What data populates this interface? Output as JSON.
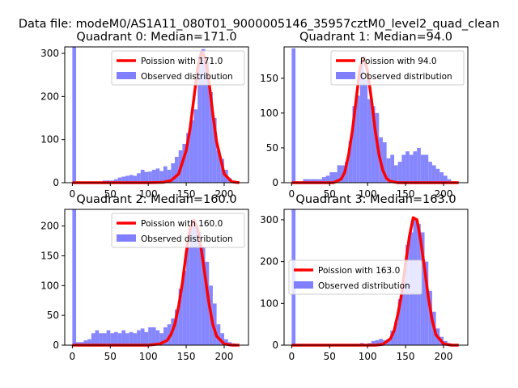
{
  "figure": {
    "suptitle": "Data file: modeM0/AS1A11_080T01_9000005146_35957cztM0_level2_quad_clean",
    "colors": {
      "hist": "#7f7fff",
      "fit": "#ff0000",
      "axis": "#000000"
    }
  },
  "chart_data": [
    {
      "type": "bar",
      "title": "Quadrant 0: Median=171.0",
      "xlim": [
        -10,
        232
      ],
      "ylim": [
        0,
        315
      ],
      "xticks": [
        0,
        50,
        100,
        150,
        200
      ],
      "yticks": [
        0,
        100,
        200,
        300
      ],
      "bin_width": 5,
      "bins": [
        [
          0,
          315
        ],
        [
          5,
          2
        ],
        [
          10,
          2
        ],
        [
          15,
          2
        ],
        [
          20,
          2
        ],
        [
          25,
          2
        ],
        [
          30,
          2
        ],
        [
          35,
          2
        ],
        [
          40,
          5
        ],
        [
          45,
          5
        ],
        [
          50,
          5
        ],
        [
          55,
          8
        ],
        [
          60,
          12
        ],
        [
          65,
          14
        ],
        [
          70,
          16
        ],
        [
          75,
          18
        ],
        [
          80,
          16
        ],
        [
          85,
          22
        ],
        [
          90,
          30
        ],
        [
          95,
          25
        ],
        [
          100,
          26
        ],
        [
          105,
          30
        ],
        [
          110,
          33
        ],
        [
          115,
          27
        ],
        [
          120,
          38
        ],
        [
          125,
          30
        ],
        [
          130,
          45
        ],
        [
          135,
          60
        ],
        [
          140,
          75
        ],
        [
          145,
          90
        ],
        [
          150,
          115
        ],
        [
          155,
          145
        ],
        [
          160,
          170
        ],
        [
          165,
          295
        ],
        [
          170,
          310
        ],
        [
          175,
          280
        ],
        [
          180,
          210
        ],
        [
          185,
          150
        ],
        [
          190,
          75
        ],
        [
          195,
          55
        ],
        [
          200,
          30
        ],
        [
          205,
          10
        ],
        [
          210,
          5
        ]
      ],
      "legend": {
        "fit_label": "Poission with 171.0",
        "hist_label": "Observed distribution",
        "loc": "upper right"
      },
      "fit": {
        "x": [
          0,
          100,
          120,
          130,
          140,
          150,
          155,
          160,
          165,
          170,
          175,
          180,
          185,
          190,
          200,
          210,
          220
        ],
        "y": [
          0,
          0,
          1,
          5,
          20,
          75,
          125,
          195,
          265,
          303,
          290,
          235,
          160,
          95,
          20,
          2,
          0
        ]
      }
    },
    {
      "type": "bar",
      "title": "Quadrant 1: Median=94.0",
      "xlim": [
        -10,
        232
      ],
      "ylim": [
        0,
        195
      ],
      "xticks": [
        0,
        50,
        100,
        150,
        200
      ],
      "yticks": [
        0,
        50,
        100,
        150
      ],
      "bin_width": 5,
      "bins": [
        [
          0,
          193
        ],
        [
          5,
          2
        ],
        [
          10,
          2
        ],
        [
          15,
          5
        ],
        [
          20,
          5
        ],
        [
          25,
          5
        ],
        [
          30,
          5
        ],
        [
          35,
          5
        ],
        [
          40,
          8
        ],
        [
          45,
          10
        ],
        [
          50,
          15
        ],
        [
          55,
          15
        ],
        [
          60,
          25
        ],
        [
          65,
          25
        ],
        [
          70,
          30
        ],
        [
          75,
          60
        ],
        [
          80,
          110
        ],
        [
          85,
          125
        ],
        [
          90,
          175
        ],
        [
          95,
          148
        ],
        [
          100,
          120
        ],
        [
          105,
          110
        ],
        [
          110,
          100
        ],
        [
          115,
          65
        ],
        [
          120,
          58
        ],
        [
          125,
          35
        ],
        [
          130,
          40
        ],
        [
          135,
          25
        ],
        [
          140,
          30
        ],
        [
          145,
          40
        ],
        [
          150,
          45
        ],
        [
          155,
          40
        ],
        [
          160,
          45
        ],
        [
          165,
          50
        ],
        [
          170,
          40
        ],
        [
          175,
          40
        ],
        [
          180,
          30
        ],
        [
          185,
          25
        ],
        [
          190,
          20
        ],
        [
          195,
          15
        ],
        [
          200,
          10
        ],
        [
          205,
          5
        ],
        [
          210,
          2
        ]
      ],
      "legend": {
        "fit_label": "Poission with 94.0",
        "hist_label": "Observed distribution",
        "loc": "upper right"
      },
      "fit": {
        "x": [
          0,
          55,
          65,
          70,
          75,
          80,
          85,
          90,
          95,
          100,
          105,
          110,
          115,
          120,
          125,
          130,
          140,
          150,
          220
        ],
        "y": [
          0,
          0,
          5,
          15,
          40,
          75,
          120,
          165,
          180,
          160,
          120,
          75,
          40,
          18,
          6,
          2,
          0,
          0,
          0
        ]
      }
    },
    {
      "type": "bar",
      "title": "Quadrant 2: Median=160.0",
      "xlim": [
        -10,
        232
      ],
      "ylim": [
        0,
        228
      ],
      "xticks": [
        0,
        50,
        100,
        150,
        200
      ],
      "yticks": [
        0,
        50,
        100,
        150,
        200
      ],
      "bin_width": 5,
      "bins": [
        [
          0,
          228
        ],
        [
          5,
          5
        ],
        [
          10,
          5
        ],
        [
          15,
          8
        ],
        [
          20,
          10
        ],
        [
          25,
          20
        ],
        [
          30,
          25
        ],
        [
          35,
          20
        ],
        [
          40,
          20
        ],
        [
          45,
          25
        ],
        [
          50,
          20
        ],
        [
          55,
          22
        ],
        [
          60,
          20
        ],
        [
          65,
          25
        ],
        [
          70,
          20
        ],
        [
          75,
          22
        ],
        [
          80,
          20
        ],
        [
          85,
          25
        ],
        [
          90,
          28
        ],
        [
          95,
          22
        ],
        [
          100,
          30
        ],
        [
          105,
          30
        ],
        [
          110,
          25
        ],
        [
          115,
          20
        ],
        [
          120,
          30
        ],
        [
          125,
          35
        ],
        [
          130,
          45
        ],
        [
          135,
          60
        ],
        [
          140,
          95
        ],
        [
          145,
          125
        ],
        [
          150,
          165
        ],
        [
          155,
          200
        ],
        [
          160,
          205
        ],
        [
          165,
          190
        ],
        [
          170,
          165
        ],
        [
          175,
          140
        ],
        [
          180,
          100
        ],
        [
          185,
          70
        ],
        [
          190,
          35
        ],
        [
          195,
          20
        ],
        [
          200,
          10
        ],
        [
          205,
          5
        ],
        [
          210,
          3
        ]
      ],
      "legend": {
        "fit_label": "Poission with 160.0",
        "hist_label": "Observed distribution",
        "loc": "upper right"
      },
      "fit": {
        "x": [
          0,
          100,
          115,
          125,
          130,
          135,
          140,
          145,
          150,
          155,
          160,
          165,
          170,
          175,
          180,
          185,
          190,
          200,
          210,
          220
        ],
        "y": [
          0,
          0,
          2,
          8,
          18,
          35,
          65,
          105,
          155,
          195,
          210,
          195,
          160,
          115,
          70,
          35,
          15,
          2,
          0,
          0
        ]
      }
    },
    {
      "type": "bar",
      "title": "Quadrant 3: Median=163.0",
      "xlim": [
        -10,
        232
      ],
      "ylim": [
        0,
        325
      ],
      "xticks": [
        0,
        50,
        100,
        150,
        200
      ],
      "yticks": [
        0,
        100,
        200,
        300
      ],
      "bin_width": 5,
      "bins": [
        [
          0,
          325
        ],
        [
          5,
          2
        ],
        [
          10,
          2
        ],
        [
          15,
          2
        ],
        [
          20,
          2
        ],
        [
          25,
          2
        ],
        [
          30,
          2
        ],
        [
          35,
          2
        ],
        [
          40,
          2
        ],
        [
          45,
          2
        ],
        [
          50,
          2
        ],
        [
          55,
          2
        ],
        [
          60,
          2
        ],
        [
          65,
          2
        ],
        [
          70,
          2
        ],
        [
          75,
          2
        ],
        [
          80,
          2
        ],
        [
          85,
          2
        ],
        [
          90,
          5
        ],
        [
          95,
          2
        ],
        [
          100,
          5
        ],
        [
          105,
          10
        ],
        [
          110,
          12
        ],
        [
          115,
          15
        ],
        [
          120,
          12
        ],
        [
          125,
          15
        ],
        [
          130,
          35
        ],
        [
          135,
          55
        ],
        [
          140,
          110
        ],
        [
          145,
          155
        ],
        [
          150,
          240
        ],
        [
          155,
          270
        ],
        [
          160,
          300
        ],
        [
          165,
          290
        ],
        [
          170,
          270
        ],
        [
          175,
          200
        ],
        [
          180,
          130
        ],
        [
          185,
          80
        ],
        [
          190,
          40
        ],
        [
          195,
          20
        ],
        [
          200,
          10
        ],
        [
          205,
          5
        ],
        [
          210,
          2
        ]
      ],
      "legend": {
        "fit_label": "Poission with 163.0",
        "hist_label": "Observed distribution",
        "loc": "center left"
      },
      "fit": {
        "x": [
          0,
          110,
          120,
          130,
          135,
          140,
          145,
          150,
          155,
          160,
          165,
          170,
          175,
          180,
          185,
          190,
          200,
          210,
          220
        ],
        "y": [
          0,
          0,
          2,
          15,
          35,
          75,
          125,
          195,
          260,
          305,
          300,
          250,
          185,
          115,
          60,
          25,
          3,
          0,
          0
        ]
      }
    }
  ]
}
